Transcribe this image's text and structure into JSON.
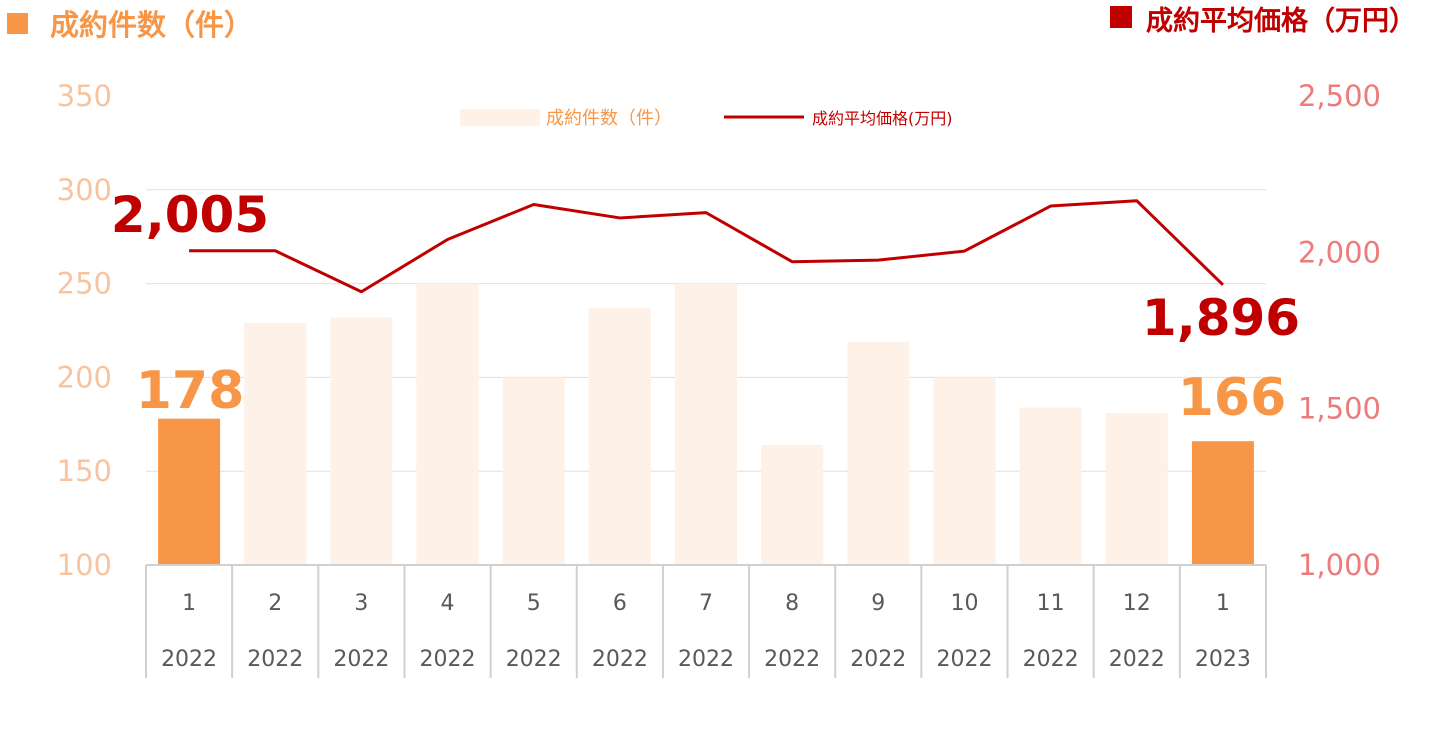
{
  "titles": {
    "left": "成約件数（件）",
    "right": "成約平均価格（万円）"
  },
  "legend": {
    "bars": "成約件数（件）",
    "line": "成約平均価格(万円)"
  },
  "colors": {
    "bar_highlight": "#F79646",
    "bar_light": "#FDF1E8",
    "line": "#C00000",
    "left_title": "#F79646",
    "right_title": "#C00000",
    "left_ticks": "#F8C4A0",
    "right_ticks": "#EE7B7B",
    "grid": "#E0E0E0",
    "axis_box": "#D0D0D0",
    "left_label": "#F79646",
    "right_label": "#C00000"
  },
  "chart_data": {
    "type": "bar+line",
    "categories": [
      "1",
      "2",
      "3",
      "4",
      "5",
      "6",
      "7",
      "8",
      "9",
      "10",
      "11",
      "12",
      "1"
    ],
    "years": [
      "2022",
      "2022",
      "2022",
      "2022",
      "2022",
      "2022",
      "2022",
      "2022",
      "2022",
      "2022",
      "2022",
      "2022",
      "2023"
    ],
    "series": [
      {
        "name": "成約件数（件）",
        "type": "bar",
        "axis": "left",
        "values": [
          178,
          229,
          232,
          250,
          200,
          237,
          250,
          164,
          219,
          200,
          184,
          181,
          166
        ],
        "highlight": [
          true,
          false,
          false,
          false,
          false,
          false,
          false,
          false,
          false,
          false,
          false,
          false,
          true
        ]
      },
      {
        "name": "成約平均価格(万円)",
        "type": "line",
        "axis": "right",
        "values": [
          2005,
          2005,
          1874,
          2041,
          2153,
          2110,
          2127,
          1970,
          1975,
          2004,
          2148,
          2165,
          1896
        ]
      }
    ],
    "left_axis": {
      "min": 100,
      "max": 350,
      "ticks": [
        "100",
        "150",
        "200",
        "250",
        "300",
        "350"
      ]
    },
    "right_axis": {
      "min": 1000,
      "max": 2500,
      "ticks": [
        "1,000",
        "1,500",
        "2,000",
        "2,500"
      ]
    },
    "annotations": {
      "line_start": "2,005",
      "line_end": "1,896",
      "bar_start": "178",
      "bar_end": "166"
    },
    "grid": true,
    "legend_position": "top-center"
  }
}
